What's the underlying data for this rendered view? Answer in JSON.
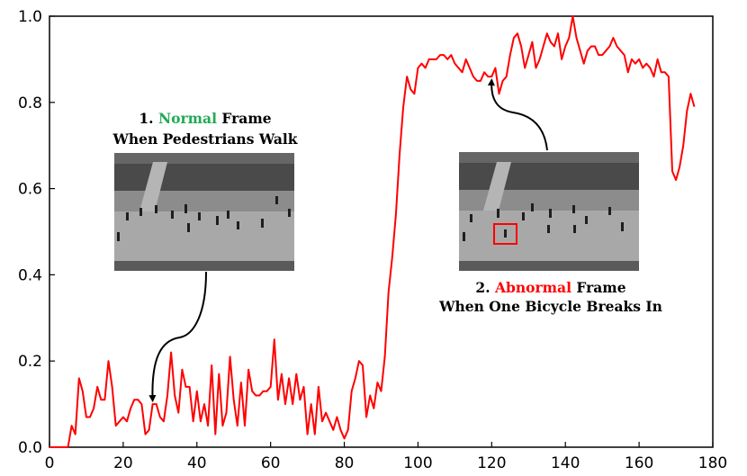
{
  "colors": {
    "line": "#ff0000",
    "normal_accent": "#22aa55",
    "abnormal_accent": "#ff0000",
    "axis": "#000000",
    "frame_bg": "#8a8a8a"
  },
  "annotations": {
    "normal": {
      "prefix": "1. ",
      "keyword": "Normal",
      "suffix": " Frame",
      "line2": "When Pedestrians Walk",
      "points_to_x": 28,
      "points_to_y": 0.1
    },
    "abnormal": {
      "prefix": "2. ",
      "keyword": "Abnormal",
      "suffix": " Frame",
      "line2": "When One Bicycle Breaks In",
      "points_to_x": 120,
      "points_to_y": 0.86
    }
  },
  "chart_data": {
    "type": "line",
    "title": "",
    "xlabel": "",
    "ylabel": "",
    "xlim": [
      0,
      180
    ],
    "ylim": [
      0,
      1.0
    ],
    "xticks": [
      0,
      20,
      40,
      60,
      80,
      100,
      120,
      140,
      160,
      180
    ],
    "yticks": [
      0.0,
      0.2,
      0.4,
      0.6,
      0.8,
      1.0
    ],
    "ytick_labels": [
      "0.0",
      "0.2",
      "0.4",
      "0.6",
      "0.8",
      "1.0"
    ],
    "grid": false,
    "series": [
      {
        "values": [
          0.0,
          0.0,
          0.0,
          0.0,
          0.0,
          0.0,
          0.05,
          0.03,
          0.16,
          0.13,
          0.07,
          0.07,
          0.09,
          0.14,
          0.11,
          0.11,
          0.2,
          0.14,
          0.05,
          0.06,
          0.07,
          0.06,
          0.09,
          0.11,
          0.11,
          0.1,
          0.03,
          0.04,
          0.1,
          0.1,
          0.07,
          0.06,
          0.12,
          0.22,
          0.12,
          0.08,
          0.18,
          0.14,
          0.14,
          0.06,
          0.13,
          0.06,
          0.1,
          0.05,
          0.19,
          0.03,
          0.17,
          0.05,
          0.08,
          0.21,
          0.11,
          0.05,
          0.15,
          0.05,
          0.18,
          0.13,
          0.12,
          0.12,
          0.13,
          0.13,
          0.14,
          0.25,
          0.11,
          0.17,
          0.1,
          0.16,
          0.1,
          0.17,
          0.11,
          0.14,
          0.03,
          0.1,
          0.03,
          0.14,
          0.06,
          0.08,
          0.06,
          0.04,
          0.07,
          0.04,
          0.02,
          0.04,
          0.13,
          0.16,
          0.2,
          0.19,
          0.07,
          0.12,
          0.09,
          0.15,
          0.13,
          0.21,
          0.36,
          0.44,
          0.54,
          0.68,
          0.79,
          0.86,
          0.83,
          0.82,
          0.88,
          0.89,
          0.88,
          0.9,
          0.9,
          0.9,
          0.91,
          0.91,
          0.9,
          0.91,
          0.89,
          0.88,
          0.87,
          0.9,
          0.88,
          0.86,
          0.85,
          0.85,
          0.87,
          0.86,
          0.86,
          0.88,
          0.82,
          0.85,
          0.86,
          0.91,
          0.95,
          0.96,
          0.93,
          0.88,
          0.91,
          0.94,
          0.88,
          0.9,
          0.93,
          0.96,
          0.94,
          0.93,
          0.96,
          0.9,
          0.93,
          0.95,
          1.0,
          0.95,
          0.92,
          0.89,
          0.92,
          0.93,
          0.93,
          0.91,
          0.91,
          0.92,
          0.93,
          0.95,
          0.93,
          0.92,
          0.91,
          0.87,
          0.9,
          0.89,
          0.9,
          0.88,
          0.89,
          0.88,
          0.86,
          0.9,
          0.87,
          0.87,
          0.86,
          0.64,
          0.62,
          0.65,
          0.7,
          0.78,
          0.82,
          0.79
        ]
      }
    ]
  }
}
